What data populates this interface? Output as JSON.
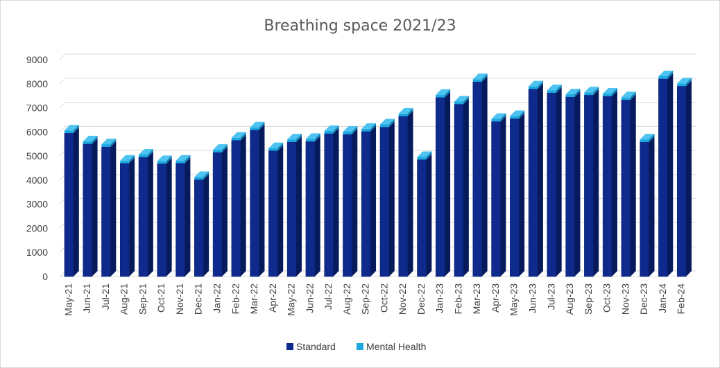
{
  "chart_data": {
    "type": "bar",
    "title": "Breathing space 2021/23",
    "xlabel": "",
    "ylabel": "",
    "ylim": [
      0,
      9000
    ],
    "yticks": [
      0,
      1000,
      2000,
      3000,
      4000,
      5000,
      6000,
      7000,
      8000,
      9000
    ],
    "grid": true,
    "legend_position": "bottom",
    "style": "3d-column",
    "categories": [
      "May-21",
      "Jun-21",
      "Jul-21",
      "Aug-21",
      "Sep-21",
      "Oct-21",
      "Nov-21",
      "Dec-21",
      "Jan-22",
      "Feb-22",
      "Mar-22",
      "Apr-22",
      "May-22",
      "Jun-22",
      "Jul-22",
      "Aug-22",
      "Sep-22",
      "Oct-22",
      "Nov-22",
      "Dec-22",
      "Jan-23",
      "Feb-23",
      "Mar-23",
      "Apr-23",
      "May-23",
      "Jun-23",
      "Jul-23",
      "Aug-23",
      "Sep-23",
      "Oct-23",
      "Nov-23",
      "Dec-23",
      "Jan-24",
      "Feb-24"
    ],
    "series": [
      {
        "name": "Standard",
        "color": "#0d2a8c",
        "values": [
          5950,
          5500,
          5380,
          4700,
          4950,
          4680,
          4700,
          4020,
          5150,
          5650,
          6080,
          5220,
          5580,
          5600,
          5930,
          5900,
          6020,
          6200,
          6650,
          4850,
          7430,
          7150,
          8080,
          6430,
          6550,
          7780,
          7620,
          7450,
          7530,
          7480,
          7330,
          5580,
          8200,
          7900
        ]
      },
      {
        "name": "Mental Health",
        "color": "#1ba8e0",
        "values": [
          110,
          110,
          110,
          110,
          110,
          110,
          110,
          110,
          110,
          110,
          110,
          110,
          110,
          110,
          110,
          110,
          110,
          110,
          110,
          110,
          110,
          110,
          110,
          110,
          110,
          110,
          110,
          110,
          110,
          110,
          110,
          110,
          110,
          110
        ]
      }
    ]
  }
}
